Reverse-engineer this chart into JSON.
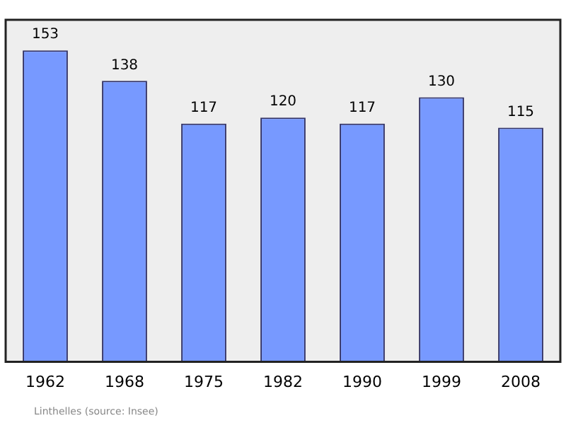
{
  "chart_data": {
    "type": "bar",
    "categories": [
      "1962",
      "1968",
      "1975",
      "1982",
      "1990",
      "1999",
      "2008"
    ],
    "values": [
      153,
      138,
      117,
      120,
      117,
      130,
      115
    ],
    "color": "#7799ff",
    "data_labels": true,
    "ylim": [
      0,
      168
    ],
    "grid": false,
    "legend": false,
    "tick_labels": "x",
    "annotations": [
      "Linthelles (source: Insee)"
    ]
  }
}
